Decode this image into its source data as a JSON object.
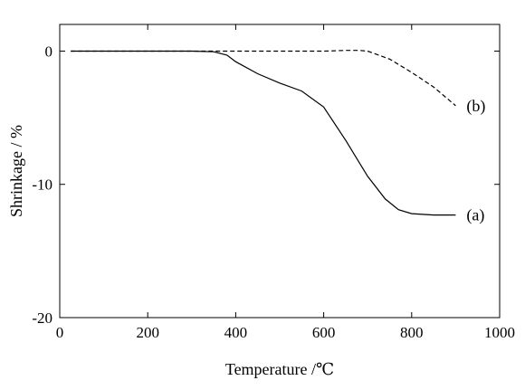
{
  "chart_data": {
    "type": "line",
    "title": "",
    "xlabel": "Temperature /℃",
    "ylabel": "Shrinkage / %",
    "xlim": [
      0,
      1000
    ],
    "ylim": [
      -20,
      2
    ],
    "xticks": [
      0,
      200,
      400,
      600,
      800,
      1000
    ],
    "yticks": [
      0,
      -10,
      -20
    ],
    "xtick_labels": [
      "0",
      "200",
      "400",
      "600",
      "800",
      "1000"
    ],
    "ytick_labels": [
      "0",
      "-10",
      "-20"
    ],
    "grid": false,
    "legend": "none",
    "series": [
      {
        "name": "(a)",
        "style": "solid",
        "color": "#000000",
        "x": [
          25,
          100,
          200,
          300,
          350,
          380,
          400,
          450,
          500,
          550,
          600,
          650,
          700,
          740,
          770,
          800,
          850,
          900
        ],
        "y": [
          0,
          0,
          0,
          0,
          -0.05,
          -0.3,
          -0.8,
          -1.7,
          -2.4,
          -3.0,
          -4.2,
          -6.7,
          -9.4,
          -11.1,
          -11.9,
          -12.2,
          -12.3,
          -12.3
        ]
      },
      {
        "name": "(b)",
        "style": "dashed",
        "color": "#000000",
        "x": [
          25,
          100,
          200,
          300,
          400,
          500,
          600,
          650,
          680,
          700,
          750,
          800,
          850,
          900
        ],
        "y": [
          0,
          0,
          0,
          0,
          0,
          0,
          0,
          0.05,
          0.05,
          0,
          -0.6,
          -1.6,
          -2.7,
          -4.1
        ]
      }
    ]
  }
}
